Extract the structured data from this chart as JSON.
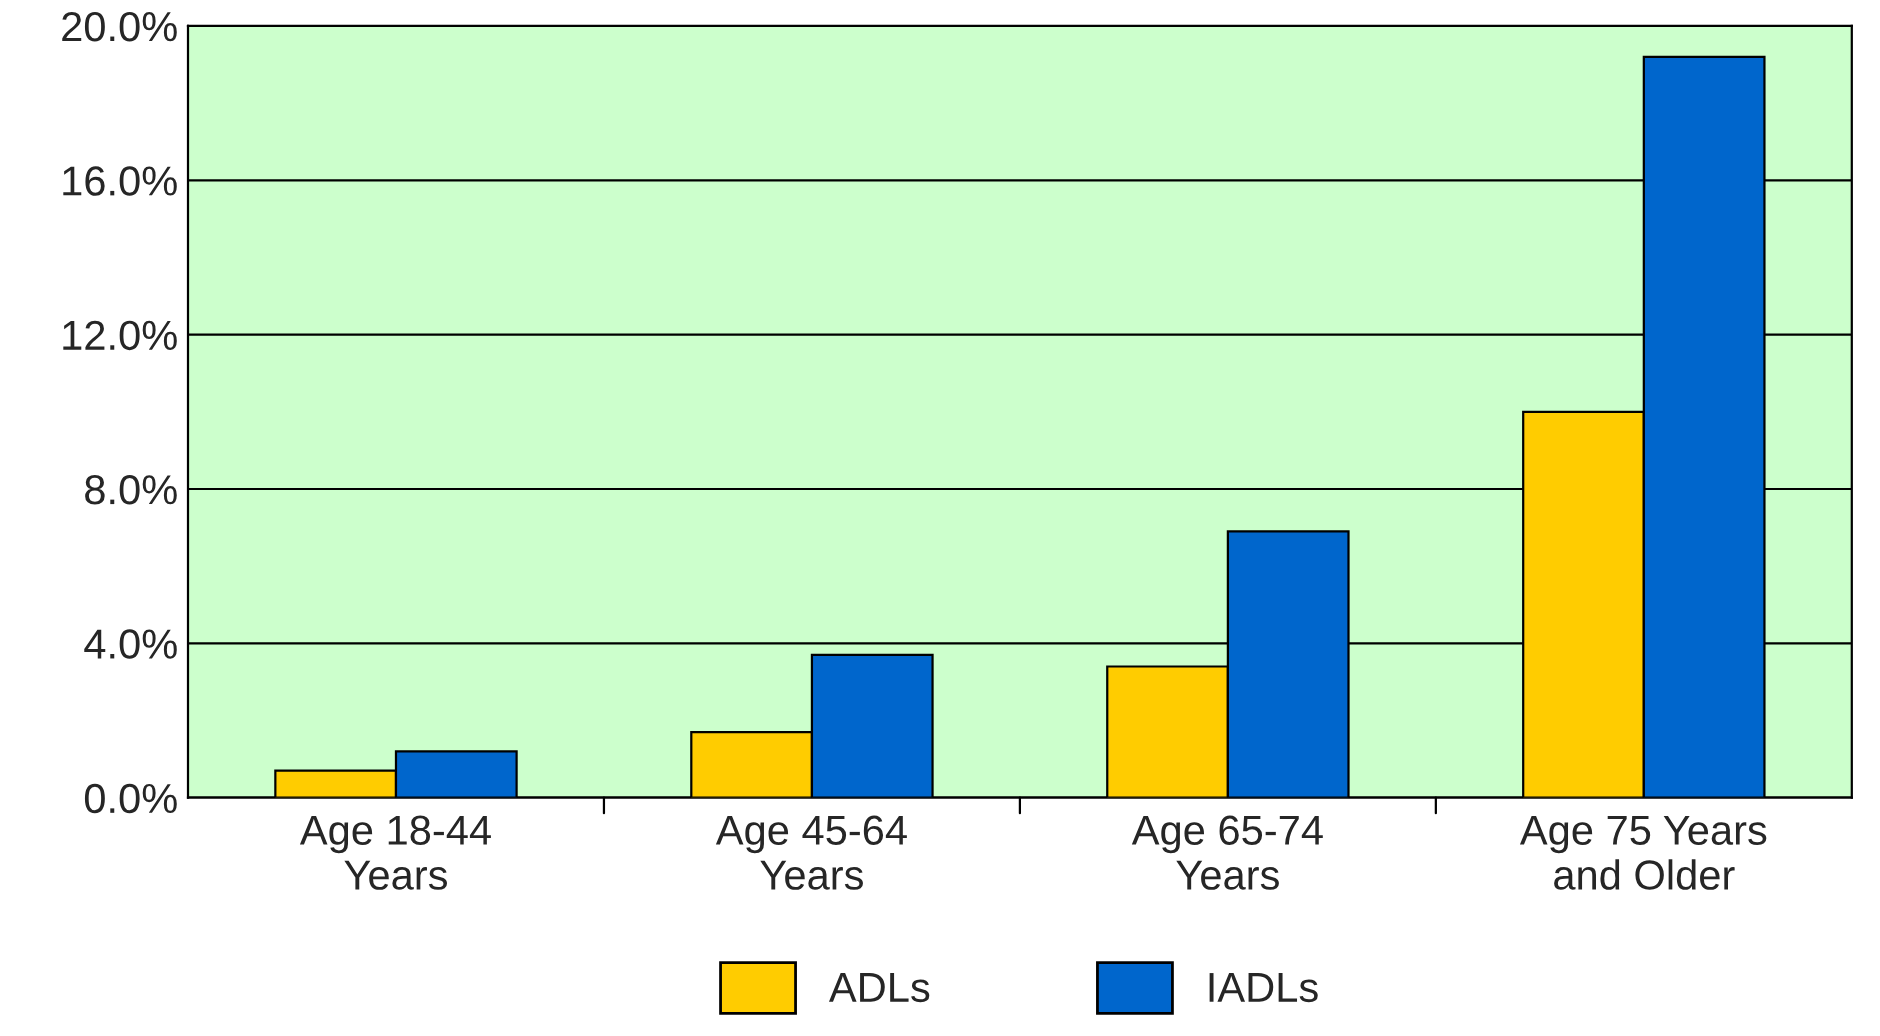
{
  "chart_data": {
    "type": "bar",
    "categories": [
      "Age 18-44\nYears",
      "Age 45-64\nYears",
      "Age 65-74\nYears",
      "Age 75 Years\nand Older"
    ],
    "series": [
      {
        "name": "ADLs",
        "color": "#ffcc00",
        "values": [
          0.7,
          1.7,
          3.4,
          10.0
        ]
      },
      {
        "name": "IADLs",
        "color": "#0066cc",
        "values": [
          1.2,
          3.7,
          6.9,
          19.2
        ]
      }
    ],
    "ylim": [
      0,
      20
    ],
    "yticks": [
      {
        "value": 0,
        "label": "0.0%"
      },
      {
        "value": 4,
        "label": "4.0%"
      },
      {
        "value": 8,
        "label": "8.0%"
      },
      {
        "value": 12,
        "label": "12.0%"
      },
      {
        "value": 16,
        "label": "16.0%"
      },
      {
        "value": 20,
        "label": "20.0%"
      }
    ],
    "grid": "y",
    "legend": "bottom"
  }
}
